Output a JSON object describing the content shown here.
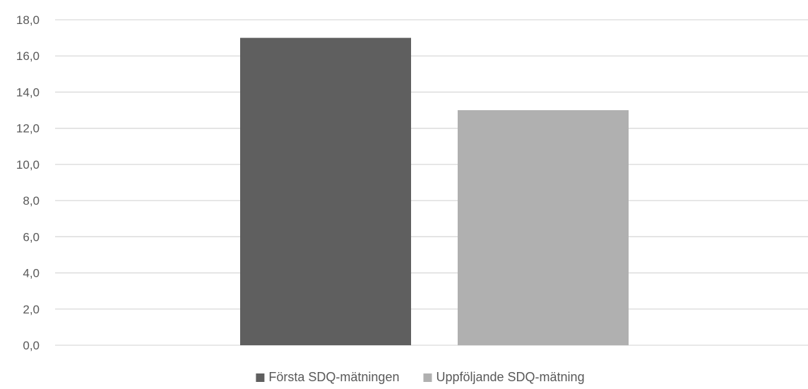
{
  "chart_data": {
    "type": "bar",
    "title": "",
    "xlabel": "",
    "ylabel": "",
    "ylim": [
      0,
      18
    ],
    "ytick_step": 2,
    "yticks": [
      "0,0",
      "2,0",
      "4,0",
      "6,0",
      "8,0",
      "10,0",
      "12,0",
      "14,0",
      "16,0",
      "18,0"
    ],
    "grid": true,
    "legend_position": "bottom",
    "categories": [
      ""
    ],
    "series": [
      {
        "name": "Första SDQ-mätningen",
        "values": [
          17.0
        ],
        "color": "#5f5f5f"
      },
      {
        "name": "Uppföljande SDQ-mätning",
        "values": [
          13.0
        ],
        "color": "#b0b0b0"
      }
    ]
  }
}
